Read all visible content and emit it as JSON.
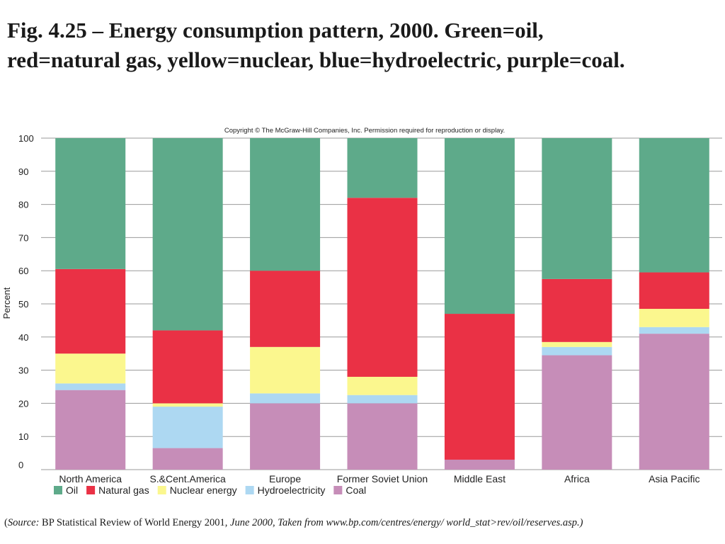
{
  "slide": {
    "title_line1": "Fig. 4.25 – Energy consumption pattern, 2000. Green=oil,",
    "title_line2": "red=natural gas, yellow=nuclear, blue=hydroelectric, purple=coal.",
    "copyright": "Copyright © The McGraw-Hill Companies, Inc. Permission required for reproduction or display.",
    "source_label": "Source:",
    "source_text": " BP Statistical Review of World Energy 2001, ",
    "source_italic": "June 2000, Taken from www.bp.com/centres/energy/ world_stat>rev/oil/reserves.asp.)"
  },
  "chart_data": {
    "type": "bar",
    "stacked": true,
    "title": "",
    "xlabel": "",
    "ylabel": "Percent",
    "ylim": [
      0,
      100
    ],
    "yticks": [
      0,
      10,
      20,
      30,
      40,
      50,
      60,
      70,
      80,
      90,
      100
    ],
    "grid": true,
    "legend_position": "bottom-left",
    "categories": [
      "North America",
      "S.&Cent.America",
      "Europe",
      "Former Soviet Union",
      "Middle East",
      "Africa",
      "Asia Pacific"
    ],
    "series": [
      {
        "name": "Coal",
        "color": "#c68db8",
        "values": [
          24,
          6.5,
          20,
          20,
          3,
          34.5,
          41
        ]
      },
      {
        "name": "Hydroelectricity",
        "color": "#add8f2",
        "values": [
          2,
          12.5,
          3,
          2.5,
          0,
          2.5,
          2
        ]
      },
      {
        "name": "Nuclear energy",
        "color": "#fbf78e",
        "values": [
          9,
          1,
          14,
          5.5,
          0,
          1.5,
          5.5
        ]
      },
      {
        "name": "Natural gas",
        "color": "#ea3145",
        "values": [
          25.5,
          22,
          23,
          54,
          44,
          19,
          11
        ]
      },
      {
        "name": "Oil",
        "color": "#5eaa8a",
        "values": [
          39.5,
          58,
          40,
          18,
          53,
          42.5,
          40.5
        ]
      }
    ],
    "legend_order": [
      "Oil",
      "Natural gas",
      "Nuclear energy",
      "Hydroelectricity",
      "Coal"
    ]
  }
}
